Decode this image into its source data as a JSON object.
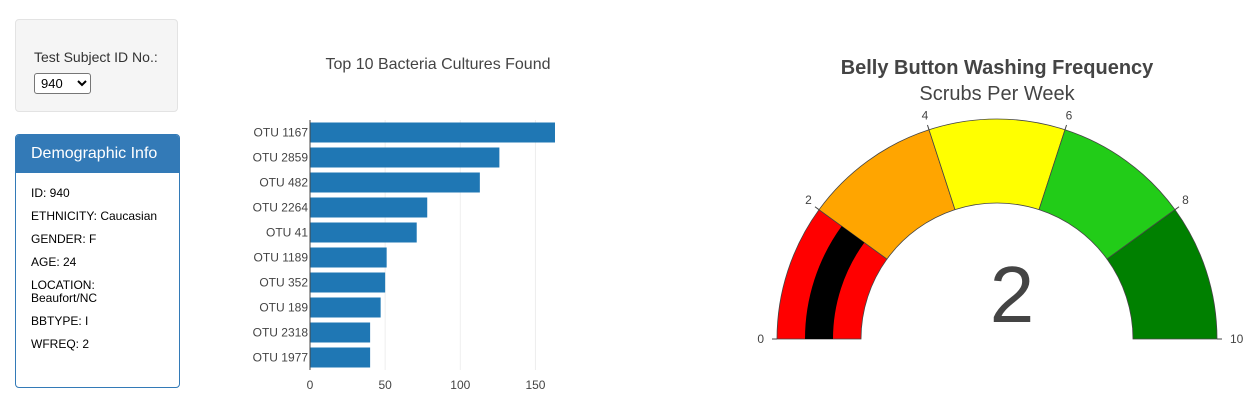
{
  "selector": {
    "label": "Test Subject ID No.:",
    "selected": "940"
  },
  "demographics": {
    "title": "Demographic Info",
    "rows": [
      "ID: 940",
      "ETHNICITY: Caucasian",
      "GENDER: F",
      "AGE: 24",
      "LOCATION: Beaufort/NC",
      "BBTYPE: I",
      "WFREQ: 2"
    ]
  },
  "chart_data": [
    {
      "type": "bar",
      "orientation": "horizontal",
      "title": "Top 10 Bacteria Cultures Found",
      "categories": [
        "OTU 1167",
        "OTU 2859",
        "OTU 482",
        "OTU 2264",
        "OTU 41",
        "OTU 1189",
        "OTU 352",
        "OTU 189",
        "OTU 2318",
        "OTU 1977"
      ],
      "values": [
        163,
        126,
        113,
        78,
        71,
        51,
        50,
        47,
        40,
        40
      ],
      "xlim": [
        0,
        165
      ],
      "xticks": [
        0,
        50,
        100,
        150
      ],
      "grid": "vertical",
      "color": "#1f77b4"
    },
    {
      "type": "gauge",
      "title": "Belly Button Washing Frequency",
      "subtitle": "Scrubs Per Week",
      "value": 2,
      "range": [
        0,
        10
      ],
      "ticks": [
        0,
        2,
        4,
        6,
        8,
        10
      ],
      "steps": [
        {
          "range": [
            0,
            2
          ],
          "color": "#ff0000"
        },
        {
          "range": [
            2,
            4
          ],
          "color": "#ffa500"
        },
        {
          "range": [
            4,
            6
          ],
          "color": "#ffff00"
        },
        {
          "range": [
            6,
            8
          ],
          "color": "#22cc18"
        },
        {
          "range": [
            8,
            10
          ],
          "color": "#008000"
        }
      ],
      "bar_color": "#000000"
    }
  ]
}
